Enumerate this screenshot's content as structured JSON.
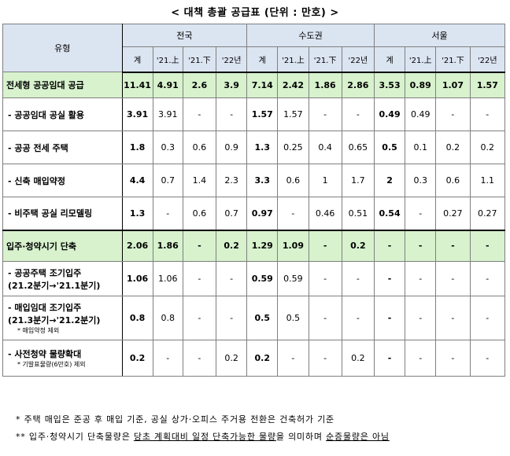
{
  "title": "< 대책 총괄 공급표 (단위 : 만호) >",
  "header": {
    "type_label": "유형",
    "regions": [
      "전국",
      "수도권",
      "서울"
    ],
    "sub_cols": [
      "계",
      "'21.上",
      "'21.下",
      "'22년"
    ]
  },
  "rows": [
    {
      "label": "전세형 공공임대 공급",
      "kind": "section",
      "cells": [
        "11.41",
        "4.91",
        "2.6",
        "3.9",
        "7.14",
        "2.42",
        "1.86",
        "2.86",
        "3.53",
        "0.89",
        "1.07",
        "1.57"
      ]
    },
    {
      "label": "- 공공임대 공실 활용",
      "kind": "item",
      "cells": [
        "3.91",
        "3.91",
        "-",
        "-",
        "1.57",
        "1.57",
        "-",
        "-",
        "0.49",
        "0.49",
        "-",
        "-"
      ]
    },
    {
      "label": "- 공공 전세 주택",
      "kind": "item",
      "cells": [
        "1.8",
        "0.3",
        "0.6",
        "0.9",
        "1.3",
        "0.25",
        "0.4",
        "0.65",
        "0.5",
        "0.1",
        "0.2",
        "0.2"
      ]
    },
    {
      "label": "- 신축 매입약정",
      "kind": "item",
      "cells": [
        "4.4",
        "0.7",
        "1.4",
        "2.3",
        "3.3",
        "0.6",
        "1",
        "1.7",
        "2",
        "0.3",
        "0.6",
        "1.1"
      ]
    },
    {
      "label": "- 비주택 공실 리모델링",
      "kind": "item",
      "cells": [
        "1.3",
        "-",
        "0.6",
        "0.7",
        "0.97",
        "-",
        "0.46",
        "0.51",
        "0.54",
        "-",
        "0.27",
        "0.27"
      ]
    },
    {
      "label": "입주·청약시기 단축",
      "kind": "section",
      "cells": [
        "2.06",
        "1.86",
        "-",
        "0.2",
        "1.29",
        "1.09",
        "-",
        "0.2",
        "-",
        "-",
        "-",
        "-"
      ]
    },
    {
      "label": "- 공공주택 조기입주",
      "label2": "(21.2분기→'21.1분기)",
      "kind": "item",
      "cells": [
        "1.06",
        "1.06",
        "-",
        "-",
        "0.59",
        "0.59",
        "-",
        "-",
        "-",
        "-",
        "-",
        "-"
      ]
    },
    {
      "label": "- 매입임대 조기입주",
      "label2": "(21.3분기→'21.2분기)",
      "note": "* 매입약정 제외",
      "kind": "item",
      "cells": [
        "0.8",
        "0.8",
        "-",
        "-",
        "0.5",
        "0.5",
        "-",
        "-",
        "-",
        "-",
        "-",
        "-"
      ]
    },
    {
      "label": "- 사전청약 물량확대",
      "note": "* 기발표물량(6만호) 제외",
      "kind": "item",
      "cells": [
        "0.2",
        "-",
        "-",
        "0.2",
        "0.2",
        "-",
        "-",
        "0.2",
        "-",
        "-",
        "-",
        "-"
      ]
    }
  ],
  "notes": {
    "n1": "* 주택 매입은 준공 후 매입 기준, 공실 상가·오피스 주거용 전환은 건축허가 기준",
    "n2_prefix": "** 입주·청약시기 단축물량은 ",
    "n2_underlined": "당초 계획대비 일정 단축가능한 물량",
    "n2_mid": "을 의미하며 ",
    "n2_tail": "순증물량은 아님"
  }
}
